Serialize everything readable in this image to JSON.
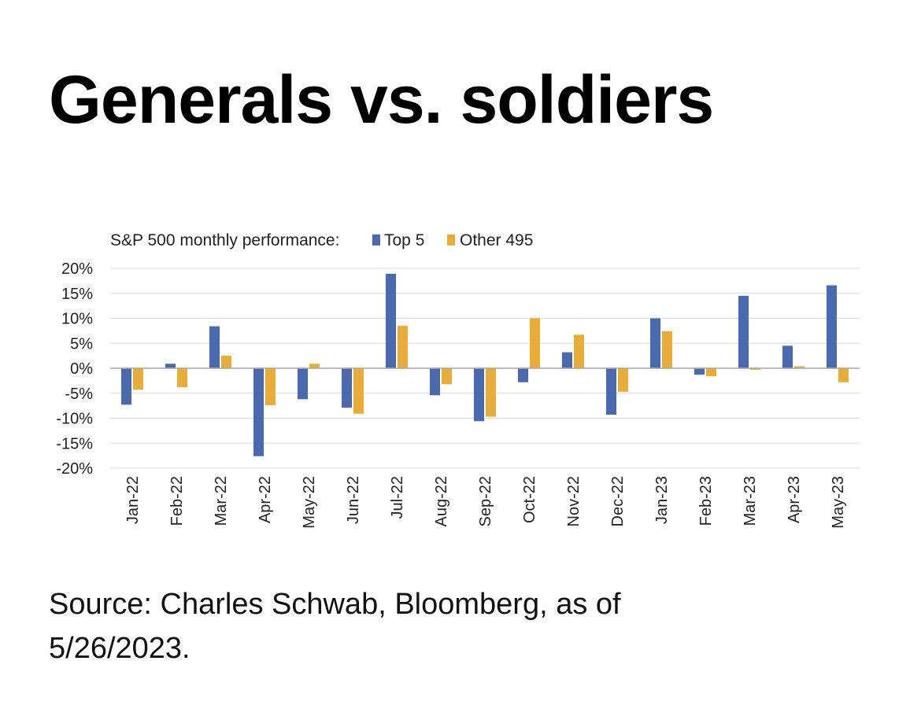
{
  "header": {
    "title": "Generals vs. soldiers"
  },
  "footer": {
    "source_line1": "Source: Charles Schwab, Bloomberg, as of",
    "source_line2": "5/26/2023."
  },
  "colors": {
    "top5": "#4a6aaf",
    "other495": "#e9ac35",
    "grid": "#d9d9d9",
    "zero_line": "#a6a6a6"
  },
  "chart_data": {
    "type": "bar",
    "title": "S&P 500 monthly performance:",
    "categories": [
      "Jan-22",
      "Feb-22",
      "Mar-22",
      "Apr-22",
      "May-22",
      "Jun-22",
      "Jul-22",
      "Aug-22",
      "Sep-22",
      "Oct-22",
      "Nov-22",
      "Dec-22",
      "Jan-23",
      "Feb-23",
      "Mar-23",
      "Apr-23",
      "May-23"
    ],
    "series": [
      {
        "name": "Top 5",
        "values": [
          -7.3,
          0.9,
          8.4,
          -17.6,
          -6.2,
          -7.9,
          18.9,
          -5.4,
          -10.6,
          -2.8,
          3.2,
          -9.3,
          10.0,
          -1.3,
          14.5,
          4.5,
          16.6
        ]
      },
      {
        "name": "Other 495",
        "values": [
          -4.3,
          -3.8,
          2.5,
          -7.4,
          0.9,
          -9.1,
          8.5,
          -3.2,
          -9.7,
          10.0,
          6.7,
          -4.7,
          7.4,
          -1.6,
          -0.3,
          0.4,
          -2.8
        ]
      }
    ],
    "ylim": [
      -20,
      20
    ],
    "yticks": [
      "20%",
      "15%",
      "10%",
      "5%",
      "0%",
      "-5%",
      "-10%",
      "-15%",
      "-20%"
    ],
    "xlabel": "",
    "ylabel": "",
    "grid": true,
    "legend": "top"
  }
}
